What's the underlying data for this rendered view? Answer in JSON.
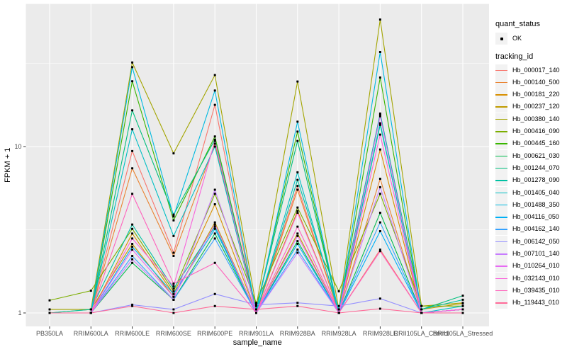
{
  "figure": {
    "background": "#ffffff",
    "panel_color": "#EBEBEB",
    "gridline_color": "#FFFFFF",
    "axis_text_color": "#4D4D4D"
  },
  "legend": {
    "quant_status_title": "quant_status",
    "quant_status_items": [
      {
        "label": "OK",
        "glyph": "black-point"
      }
    ],
    "tracking_id_title": "tracking_id"
  },
  "chart_data": {
    "type": "line",
    "title": "",
    "xlabel": "sample_name",
    "ylabel": "FPKM + 1",
    "y_scale": "log10",
    "y_ticks": [
      1,
      10
    ],
    "y_minor_gridlines": [
      3.162,
      31.62
    ],
    "grid": true,
    "legend_position": "right",
    "point_shape": "small-black-point",
    "categories": [
      "PB350LA",
      "RRIM600LA",
      "RRIM600LE",
      "RRIM600SE",
      "RRIM600PE",
      "RRIM901LA",
      "RRIM928BA",
      "RRIM928LA",
      "RRIM928LE",
      "RRII105LA_Control",
      "RRII105LA_Stressed"
    ],
    "series": [
      {
        "name": "Hb_000017_140",
        "color": "#F8766D",
        "values": [
          1.0,
          1.0,
          9.4,
          2.3,
          17.8,
          1.0,
          5.8,
          1.0,
          2.4,
          1.0,
          1.05
        ]
      },
      {
        "name": "Hb_000140_500",
        "color": "#EA8331",
        "values": [
          1.0,
          1.0,
          7.4,
          2.2,
          10.4,
          1.0,
          5.5,
          1.0,
          6.4,
          1.0,
          1.0
        ]
      },
      {
        "name": "Hb_000181_220",
        "color": "#D89000",
        "values": [
          1.0,
          1.0,
          3.0,
          1.3,
          4.5,
          1.0,
          4.1,
          1.0,
          9.6,
          1.0,
          1.05
        ]
      },
      {
        "name": "Hb_000237_120",
        "color": "#C09B00",
        "values": [
          1.0,
          1.05,
          2.6,
          1.25,
          3.5,
          1.0,
          3.0,
          1.0,
          15.5,
          1.05,
          1.14
        ]
      },
      {
        "name": "Hb_000380_140",
        "color": "#A3A500",
        "values": [
          1.05,
          1.05,
          32,
          9.1,
          26.9,
          1.1,
          24.6,
          1.05,
          58,
          1.1,
          1.15
        ]
      },
      {
        "name": "Hb_000416_090",
        "color": "#7CAE00",
        "values": [
          1.19,
          1.36,
          3.2,
          1.35,
          5.2,
          1.15,
          4.3,
          1.35,
          5.2,
          1.1,
          1.1
        ]
      },
      {
        "name": "Hb_000445_160",
        "color": "#39B600",
        "values": [
          1.0,
          1.0,
          24.7,
          3.6,
          11.5,
          1.05,
          12.3,
          1.0,
          26,
          1.0,
          1.05
        ]
      },
      {
        "name": "Hb_000621_030",
        "color": "#00BB4E",
        "values": [
          1.0,
          1.0,
          2.0,
          1.2,
          3.0,
          1.0,
          2.7,
          1.0,
          4.0,
          1.0,
          1.05
        ]
      },
      {
        "name": "Hb_001244_070",
        "color": "#00BF7D",
        "values": [
          1.0,
          1.0,
          16.5,
          3.9,
          11.0,
          1.05,
          10.8,
          1.0,
          13.5,
          1.05,
          1.27
        ]
      },
      {
        "name": "Hb_001278_090",
        "color": "#00C1A3",
        "values": [
          1.0,
          1.05,
          3.4,
          1.4,
          3.3,
          1.0,
          6.3,
          1.05,
          15.8,
          1.05,
          1.2
        ]
      },
      {
        "name": "Hb_001405_040",
        "color": "#00BFC4",
        "values": [
          1.0,
          1.0,
          12.7,
          2.9,
          10.0,
          1.0,
          7.0,
          1.0,
          13.8,
          1.0,
          1.1
        ]
      },
      {
        "name": "Hb_001488_350",
        "color": "#00BAE0",
        "values": [
          1.0,
          1.0,
          30,
          3.8,
          21.7,
          1.0,
          14.1,
          1.0,
          37,
          1.0,
          1.05
        ]
      },
      {
        "name": "Hb_004116_050",
        "color": "#00B0F6",
        "values": [
          1.0,
          1.0,
          2.5,
          1.3,
          3.2,
          1.0,
          2.6,
          1.0,
          3.1,
          1.0,
          1.0
        ]
      },
      {
        "name": "Hb_004162_140",
        "color": "#35A2FF",
        "values": [
          1.0,
          1.0,
          2.2,
          1.2,
          2.8,
          1.0,
          2.4,
          1.0,
          3.5,
          1.0,
          1.0
        ]
      },
      {
        "name": "Hb_006142_050",
        "color": "#9590FF",
        "values": [
          1.0,
          1.0,
          1.12,
          1.05,
          1.3,
          1.12,
          1.15,
          1.1,
          1.22,
          1.0,
          1.0
        ]
      },
      {
        "name": "Hb_007101_140",
        "color": "#C77CFF",
        "values": [
          1.0,
          1.0,
          2.1,
          1.2,
          5.5,
          1.0,
          2.3,
          1.0,
          5.7,
          1.0,
          1.05
        ]
      },
      {
        "name": "Hb_010264_010",
        "color": "#E76BF3",
        "values": [
          1.0,
          1.0,
          2.4,
          1.25,
          3.4,
          1.0,
          2.9,
          1.0,
          15.2,
          1.0,
          1.05
        ]
      },
      {
        "name": "Hb_032143_010",
        "color": "#FA62DB",
        "values": [
          1.0,
          1.0,
          2.8,
          1.45,
          10.8,
          1.0,
          4.0,
          1.0,
          11.8,
          1.0,
          1.05
        ]
      },
      {
        "name": "Hb_039435_010",
        "color": "#FF62BC",
        "values": [
          1.0,
          1.0,
          5.2,
          1.5,
          2.0,
          1.0,
          3.3,
          1.0,
          2.35,
          1.0,
          1.0
        ]
      },
      {
        "name": "Hb_119443_010",
        "color": "#FF6A98",
        "values": [
          1.0,
          1.0,
          1.1,
          1.0,
          1.1,
          1.05,
          1.1,
          1.0,
          1.06,
          1.0,
          1.0
        ]
      }
    ]
  }
}
